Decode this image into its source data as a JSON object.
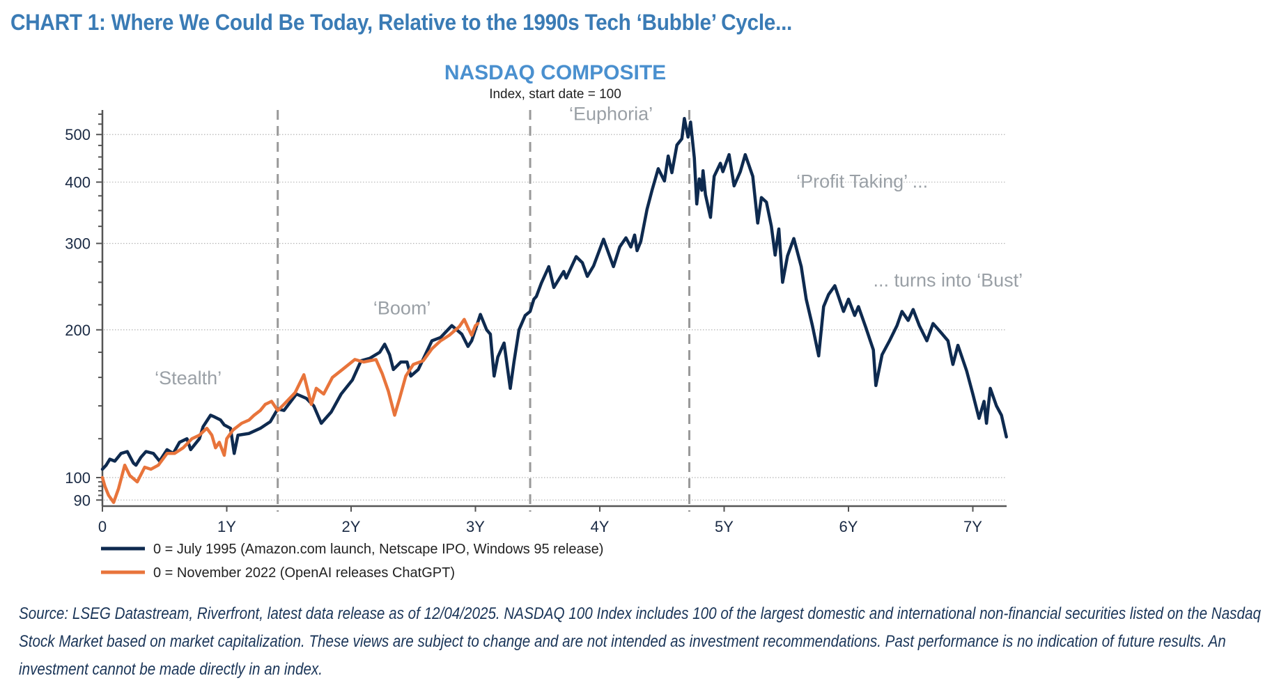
{
  "header": {
    "title": "CHART 1: Where We Could Be Today, Relative to the 1990s Tech ‘Bubble’ Cycle..."
  },
  "footnote": "Source: LSEG Datastream, Riverfront, latest data release as of 12/04/2025. NASDAQ 100 Index includes 100 of the largest domestic and international non-financial securities listed on the Nasdaq Stock Market based on market capitalization. These views are subject to change and are not intended as investment recommendations. Past performance is no indication of future results. An investment cannot be made directly in an index.",
  "colors": {
    "title": "#3a7bb5",
    "chart_title": "#4a90cf",
    "series_1995": "#0e2a4f",
    "series_2022": "#e8743b",
    "annotation": "#9aa0a6",
    "footnote": "#1a3558"
  },
  "chart_data": {
    "type": "line",
    "title": "NASDAQ COMPOSITE",
    "subtitle": "Index, start date = 100",
    "xlabel": "",
    "ylabel": "",
    "y_scale": "log",
    "ylim": [
      87.5,
      560
    ],
    "xlim": [
      0,
      7.27
    ],
    "grid": "horizontal dotted at y ticks",
    "y_ticks": [
      90,
      100,
      200,
      300,
      400,
      500
    ],
    "y_minor_ticks": [
      92,
      94,
      96,
      98,
      120,
      140,
      160,
      180,
      225,
      250,
      275,
      325,
      350,
      375,
      425,
      450,
      475,
      525,
      550
    ],
    "x_ticks": [
      0,
      1,
      2,
      3,
      4,
      5,
      6,
      7
    ],
    "x_tick_labels": [
      "0",
      "1Y",
      "2Y",
      "3Y",
      "4Y",
      "5Y",
      "6Y",
      "7Y"
    ],
    "phase_boundaries_years": [
      1.41,
      3.44,
      4.72
    ],
    "annotations": [
      {
        "text": "‘Stealth’",
        "x": 0.69,
        "y": 155
      },
      {
        "text": "‘Boom’",
        "x": 2.41,
        "y": 215
      },
      {
        "text": "‘Euphoria’",
        "x": 4.09,
        "y": 535
      },
      {
        "text": "‘Profit Taking’ ...",
        "x": 6.11,
        "y": 390
      },
      {
        "text": "... turns into ‘Bust’",
        "x": 6.8,
        "y": 245
      }
    ],
    "legend_position": "bottom-left",
    "series": [
      {
        "name": "0 = July 1995 (Amazon.com launch, Netscape IPO, Windows 95 release)",
        "color": "#0e2a4f",
        "points": [
          [
            0,
            104
          ],
          [
            0.03,
            106
          ],
          [
            0.06,
            109
          ],
          [
            0.1,
            108
          ],
          [
            0.15,
            112
          ],
          [
            0.2,
            113
          ],
          [
            0.25,
            107
          ],
          [
            0.27,
            106
          ],
          [
            0.31,
            110
          ],
          [
            0.35,
            113
          ],
          [
            0.41,
            112
          ],
          [
            0.46,
            108
          ],
          [
            0.52,
            114
          ],
          [
            0.57,
            112
          ],
          [
            0.62,
            118
          ],
          [
            0.68,
            120
          ],
          [
            0.71,
            114
          ],
          [
            0.78,
            120
          ],
          [
            0.81,
            127
          ],
          [
            0.87,
            134
          ],
          [
            0.9,
            133
          ],
          [
            0.95,
            131
          ],
          [
            0.98,
            128
          ],
          [
            1.03,
            126
          ],
          [
            1.06,
            112
          ],
          [
            1.09,
            122
          ],
          [
            1.18,
            123
          ],
          [
            1.27,
            126
          ],
          [
            1.35,
            130
          ],
          [
            1.41,
            138
          ],
          [
            1.46,
            137
          ],
          [
            1.56,
            148
          ],
          [
            1.64,
            145
          ],
          [
            1.7,
            140
          ],
          [
            1.76,
            129
          ],
          [
            1.84,
            136
          ],
          [
            1.92,
            148
          ],
          [
            2.01,
            158
          ],
          [
            2.08,
            173
          ],
          [
            2.15,
            175
          ],
          [
            2.23,
            180
          ],
          [
            2.27,
            187
          ],
          [
            2.31,
            178
          ],
          [
            2.34,
            166
          ],
          [
            2.4,
            172
          ],
          [
            2.45,
            172
          ],
          [
            2.48,
            161
          ],
          [
            2.54,
            166
          ],
          [
            2.65,
            190
          ],
          [
            2.72,
            193
          ],
          [
            2.81,
            204
          ],
          [
            2.89,
            196
          ],
          [
            2.94,
            185
          ],
          [
            2.97,
            190
          ],
          [
            3.04,
            215
          ],
          [
            3.09,
            200
          ],
          [
            3.12,
            196
          ],
          [
            3.15,
            161
          ],
          [
            3.18,
            176
          ],
          [
            3.23,
            188
          ],
          [
            3.28,
            152
          ],
          [
            3.31,
            172
          ],
          [
            3.35,
            200
          ],
          [
            3.4,
            214
          ],
          [
            3.44,
            218
          ],
          [
            3.47,
            231
          ],
          [
            3.49,
            234
          ],
          [
            3.53,
            249
          ],
          [
            3.59,
            269
          ],
          [
            3.63,
            244
          ],
          [
            3.71,
            263
          ],
          [
            3.73,
            255
          ],
          [
            3.81,
            282
          ],
          [
            3.86,
            274
          ],
          [
            3.9,
            257
          ],
          [
            3.95,
            270
          ],
          [
            4.03,
            306
          ],
          [
            4.11,
            269
          ],
          [
            4.16,
            295
          ],
          [
            4.21,
            308
          ],
          [
            4.25,
            295
          ],
          [
            4.28,
            312
          ],
          [
            4.3,
            290
          ],
          [
            4.33,
            303
          ],
          [
            4.38,
            352
          ],
          [
            4.42,
            385
          ],
          [
            4.47,
            426
          ],
          [
            4.52,
            402
          ],
          [
            4.55,
            452
          ],
          [
            4.58,
            418
          ],
          [
            4.62,
            476
          ],
          [
            4.66,
            490
          ],
          [
            4.68,
            539
          ],
          [
            4.71,
            494
          ],
          [
            4.73,
            530
          ],
          [
            4.76,
            448
          ],
          [
            4.78,
            361
          ],
          [
            4.8,
            406
          ],
          [
            4.82,
            385
          ],
          [
            4.83,
            422
          ],
          [
            4.85,
            377
          ],
          [
            4.89,
            339
          ],
          [
            4.92,
            411
          ],
          [
            4.97,
            437
          ],
          [
            4.99,
            420
          ],
          [
            5.04,
            455
          ],
          [
            5.08,
            393
          ],
          [
            5.13,
            420
          ],
          [
            5.17,
            455
          ],
          [
            5.23,
            411
          ],
          [
            5.27,
            330
          ],
          [
            5.3,
            372
          ],
          [
            5.34,
            364
          ],
          [
            5.38,
            325
          ],
          [
            5.41,
            284
          ],
          [
            5.44,
            321
          ],
          [
            5.47,
            250
          ],
          [
            5.51,
            283
          ],
          [
            5.56,
            307
          ],
          [
            5.62,
            269
          ],
          [
            5.66,
            231
          ],
          [
            5.71,
            204
          ],
          [
            5.76,
            177
          ],
          [
            5.8,
            223
          ],
          [
            5.84,
            236
          ],
          [
            5.89,
            246
          ],
          [
            5.96,
            218
          ],
          [
            6.0,
            231
          ],
          [
            6.05,
            214
          ],
          [
            6.08,
            223
          ],
          [
            6.14,
            202
          ],
          [
            6.2,
            182
          ],
          [
            6.22,
            154
          ],
          [
            6.27,
            178
          ],
          [
            6.33,
            190
          ],
          [
            6.39,
            204
          ],
          [
            6.43,
            218
          ],
          [
            6.48,
            209
          ],
          [
            6.52,
            220
          ],
          [
            6.57,
            204
          ],
          [
            6.63,
            190
          ],
          [
            6.68,
            206
          ],
          [
            6.74,
            198
          ],
          [
            6.8,
            190
          ],
          [
            6.84,
            170
          ],
          [
            6.88,
            186
          ],
          [
            6.95,
            165
          ],
          [
            7.0,
            148
          ],
          [
            7.05,
            132
          ],
          [
            7.09,
            143
          ],
          [
            7.11,
            129
          ],
          [
            7.14,
            152
          ],
          [
            7.19,
            140
          ],
          [
            7.23,
            134
          ],
          [
            7.27,
            121
          ]
        ]
      },
      {
        "name": "0 = November 2022 (OpenAI releases ChatGPT)",
        "color": "#e8743b",
        "points": [
          [
            0,
            100
          ],
          [
            0.02,
            96
          ],
          [
            0.05,
            92
          ],
          [
            0.09,
            89
          ],
          [
            0.13,
            95
          ],
          [
            0.18,
            106
          ],
          [
            0.22,
            101
          ],
          [
            0.28,
            98
          ],
          [
            0.34,
            105
          ],
          [
            0.39,
            104
          ],
          [
            0.45,
            106
          ],
          [
            0.52,
            112
          ],
          [
            0.58,
            112
          ],
          [
            0.65,
            115
          ],
          [
            0.72,
            120
          ],
          [
            0.78,
            122
          ],
          [
            0.84,
            126
          ],
          [
            0.88,
            122
          ],
          [
            0.91,
            115
          ],
          [
            0.94,
            118
          ],
          [
            0.98,
            111
          ],
          [
            1.0,
            120
          ],
          [
            1.05,
            125
          ],
          [
            1.12,
            129
          ],
          [
            1.18,
            131
          ],
          [
            1.22,
            134
          ],
          [
            1.27,
            137
          ],
          [
            1.31,
            141
          ],
          [
            1.36,
            143
          ],
          [
            1.41,
            137
          ],
          [
            1.46,
            141
          ],
          [
            1.55,
            149
          ],
          [
            1.62,
            162
          ],
          [
            1.68,
            141
          ],
          [
            1.72,
            152
          ],
          [
            1.78,
            148
          ],
          [
            1.85,
            160
          ],
          [
            1.93,
            166
          ],
          [
            2.03,
            174
          ],
          [
            2.1,
            172
          ],
          [
            2.2,
            174
          ],
          [
            2.25,
            163
          ],
          [
            2.3,
            150
          ],
          [
            2.35,
            134
          ],
          [
            2.39,
            145
          ],
          [
            2.44,
            161
          ],
          [
            2.5,
            170
          ],
          [
            2.58,
            173
          ],
          [
            2.65,
            183
          ],
          [
            2.72,
            190
          ],
          [
            2.79,
            195
          ],
          [
            2.87,
            203
          ],
          [
            2.91,
            210
          ],
          [
            2.94,
            202
          ],
          [
            2.97,
            195
          ],
          [
            3.0,
            204
          ],
          [
            3.02,
            206
          ]
        ]
      }
    ]
  }
}
